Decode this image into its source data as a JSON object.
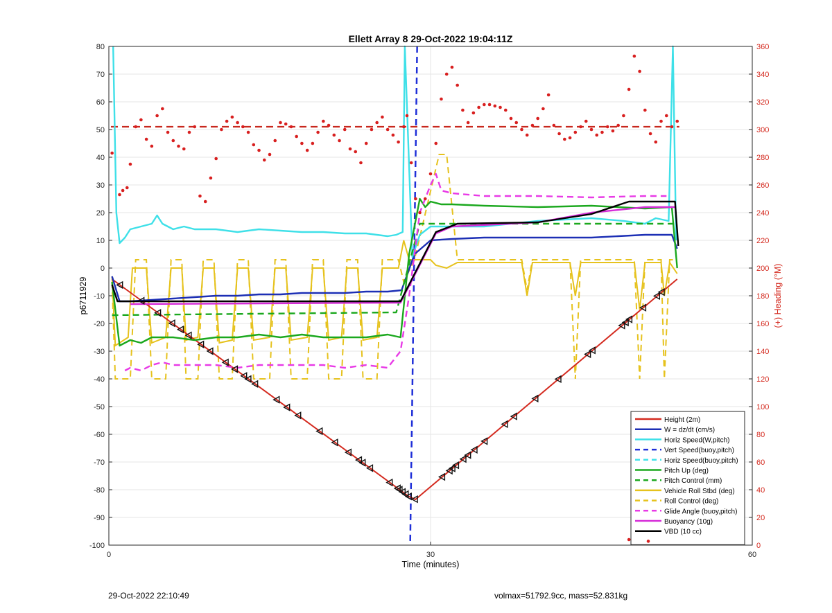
{
  "chart_data": {
    "type": "line",
    "title": "Ellett Array 8 29-Oct-2022 19:04:11Z",
    "xlabel": "Time (minutes)",
    "ylabel": "p6711929",
    "y2label": "(+) Heading (°M)",
    "xlim": [
      0,
      60
    ],
    "ylim": [
      -100,
      80
    ],
    "y2lim": [
      0,
      360
    ],
    "xticks": [
      0,
      30,
      60
    ],
    "yticks": [
      80,
      70,
      60,
      50,
      40,
      30,
      20,
      10,
      0,
      -10,
      -20,
      -30,
      -40,
      -50,
      -60,
      -70,
      -80,
      -90,
      -100
    ],
    "y2ticks": [
      360,
      340,
      320,
      300,
      280,
      260,
      240,
      220,
      200,
      180,
      160,
      140,
      120,
      100,
      80,
      60,
      40,
      20,
      0
    ],
    "grid": true,
    "legend_position": "bottom-right",
    "vertical_marker_x": 28.5,
    "heading_mean": 302,
    "series": [
      {
        "name": "Height (2m)",
        "color": "#d42a1f",
        "style": "solid",
        "x": [
          0.3,
          28.0,
          28.6,
          53.0
        ],
        "y": [
          -4,
          -82.5,
          -83.5,
          -4
        ]
      },
      {
        "name": "W = dz/dt (cm/s)",
        "color": "#1c2fb5",
        "style": "solid",
        "x": [
          0.3,
          1,
          2,
          4,
          6,
          8,
          10,
          12,
          14,
          16,
          18,
          20,
          22,
          24,
          26,
          27.3,
          28.5,
          30,
          32,
          35,
          40,
          45,
          50,
          52.5,
          53.0
        ],
        "y": [
          -3,
          -12,
          -12,
          -11.5,
          -11,
          -10.5,
          -10,
          -10,
          -9.5,
          -9.5,
          -9,
          -9,
          -9,
          -8.5,
          -8.5,
          -8,
          5,
          10,
          10.5,
          11,
          11,
          11,
          12,
          12,
          7
        ]
      },
      {
        "name": "Horiz Speed(W,pitch)",
        "color": "#3fe0e8",
        "style": "solid",
        "x": [
          0.4,
          0.7,
          1,
          1.5,
          2,
          3,
          4,
          4.5,
          5,
          6,
          7,
          8,
          10,
          12,
          14,
          16,
          18,
          20,
          22,
          24,
          26,
          26.8,
          27.4,
          27.6,
          28.3,
          29,
          30,
          32,
          35,
          40,
          45,
          48,
          50,
          51,
          52.2,
          52.6,
          52.9
        ],
        "y": [
          80,
          20,
          9,
          11,
          14,
          15,
          16,
          19,
          16,
          14,
          15,
          14,
          14,
          13,
          14,
          13.5,
          13,
          13,
          12.5,
          12.5,
          11.5,
          12,
          13,
          80,
          4,
          12,
          15,
          15,
          15,
          17,
          18,
          17,
          16,
          18,
          17,
          80,
          10
        ]
      },
      {
        "name": "Vert Speed(buoy,pitch)",
        "color": "#1f2fd8",
        "style": "dashed",
        "x": [],
        "y": []
      },
      {
        "name": "Horiz Speed(buoy,pitch)",
        "color": "#3fe0e8",
        "style": "dashed",
        "x": [],
        "y": []
      },
      {
        "name": "Pitch Up (deg)",
        "color": "#1ba81e",
        "style": "solid",
        "x": [
          0.3,
          1,
          2,
          3,
          4,
          6,
          8,
          10,
          12,
          14,
          16,
          18,
          20,
          22,
          24,
          26,
          27.2,
          28,
          29,
          29.5,
          30,
          31,
          32,
          35,
          40,
          45,
          50,
          52.5,
          53
        ],
        "y": [
          -5,
          -28,
          -26,
          -27,
          -25,
          -25,
          -26,
          -25,
          -25,
          -24,
          -25,
          -24,
          -25,
          -25,
          -25,
          -24,
          -25,
          5,
          25,
          22,
          24,
          23,
          23,
          22.5,
          22,
          22.5,
          21.5,
          22,
          0
        ]
      },
      {
        "name": "Pitch Control (mm)",
        "color": "#1ba81e",
        "style": "dashed",
        "x": [
          0.3,
          26.8,
          29.0,
          53.0
        ],
        "y": [
          -17,
          -16,
          16,
          16
        ]
      },
      {
        "name": "Vehicle Roll Stbd (deg)",
        "color": "#e6c21d",
        "style": "solid",
        "x": [],
        "y": []
      },
      {
        "name": "Roll Control (deg)",
        "color": "#e6c21d",
        "style": "dashed",
        "x": [],
        "y": []
      },
      {
        "name": "Glide Angle (buoy,pitch)",
        "color": "#e83ae6",
        "style": "dashed",
        "x": [
          1.5,
          2,
          3,
          4,
          5,
          6,
          8,
          10,
          12,
          14,
          16,
          18,
          20,
          22,
          24,
          26,
          27.2,
          28,
          29,
          30,
          30.5,
          31,
          32,
          35,
          40,
          45,
          50,
          52
        ],
        "y": [
          -37,
          -36,
          -37,
          -35,
          -34,
          -35,
          -35,
          -35,
          -36,
          -35,
          -35,
          -35,
          -35,
          -36,
          -35,
          -36,
          -30,
          -10,
          20,
          30,
          34,
          28,
          27,
          26,
          26,
          25.5,
          26,
          26
        ]
      },
      {
        "name": "Buoyancy (10g)",
        "color": "#d62bd8",
        "style": "solid",
        "x": [
          2,
          27.2,
          30.5,
          32,
          40,
          45,
          50,
          52.8
        ],
        "y": [
          -13,
          -12.5,
          12.5,
          15,
          16.5,
          20,
          22,
          22
        ]
      },
      {
        "name": "VBD (10 cc)",
        "color": "#000000",
        "style": "solid",
        "x": [
          0.3,
          0.8,
          27.2,
          30.5,
          32.5,
          40,
          45,
          48.5,
          52.8,
          53.1
        ],
        "y": [
          -6,
          -12,
          -12,
          13,
          16,
          16.5,
          19.5,
          24,
          24,
          8
        ]
      }
    ],
    "heading_points": {
      "name": "Heading",
      "color": "#d81f1f",
      "x": [
        0.3,
        1.0,
        1.3,
        1.7,
        2.0,
        2.5,
        3.0,
        3.5,
        4.0,
        4.5,
        5.0,
        5.5,
        6.0,
        6.5,
        7.0,
        7.5,
        8.0,
        8.5,
        9.0,
        9.5,
        10.0,
        10.5,
        11.0,
        11.5,
        12.0,
        12.5,
        13.0,
        13.5,
        14.0,
        14.5,
        15.0,
        15.5,
        16.0,
        16.5,
        17.0,
        17.5,
        18.0,
        18.5,
        19.0,
        19.5,
        20.0,
        20.5,
        21.0,
        21.5,
        22.0,
        22.5,
        23.0,
        23.5,
        24.0,
        24.5,
        25.0,
        25.5,
        26.0,
        26.5,
        27.0,
        27.5,
        27.8,
        28.2,
        28.6,
        29.0,
        29.5,
        30.0,
        30.5,
        31.0,
        31.5,
        32.0,
        32.5,
        33.0,
        33.5,
        34.0,
        34.5,
        35.0,
        35.5,
        36.0,
        36.5,
        37.0,
        37.5,
        38.0,
        38.5,
        39.0,
        39.5,
        40.0,
        40.5,
        41.0,
        41.5,
        42.0,
        42.5,
        43.0,
        43.5,
        44.0,
        44.5,
        45.0,
        45.5,
        46.0,
        46.5,
        47.0,
        47.5,
        48.0,
        48.5,
        49.0,
        49.5,
        50.0,
        50.5,
        51.0,
        51.5,
        52.0,
        52.5,
        53.0
      ],
      "y": [
        283,
        253,
        256,
        258,
        275,
        302,
        307,
        293,
        288,
        310,
        315,
        298,
        292,
        288,
        286,
        298,
        302,
        252,
        248,
        265,
        279,
        300,
        306,
        309,
        305,
        302,
        298,
        289,
        285,
        278,
        282,
        292,
        305,
        304,
        302,
        295,
        290,
        285,
        290,
        298,
        306,
        303,
        296,
        292,
        300,
        286,
        284,
        276,
        290,
        300,
        305,
        309,
        300,
        296,
        291,
        302,
        310,
        276,
        250,
        240,
        250,
        268,
        290,
        322,
        340,
        345,
        332,
        314,
        305,
        312,
        316,
        318,
        318,
        317,
        316,
        314,
        308,
        305,
        300,
        296,
        303,
        308,
        315,
        325,
        303,
        297,
        293,
        294,
        298,
        302,
        306,
        300,
        296,
        298,
        302,
        299,
        303,
        310,
        329,
        353,
        342,
        314,
        297,
        291,
        306,
        310,
        302,
        306
      ]
    }
  },
  "footer": {
    "timestamp": "29-Oct-2022 22:10:49",
    "summary": "volmax=51792.9cc, mass=52.831kg"
  }
}
